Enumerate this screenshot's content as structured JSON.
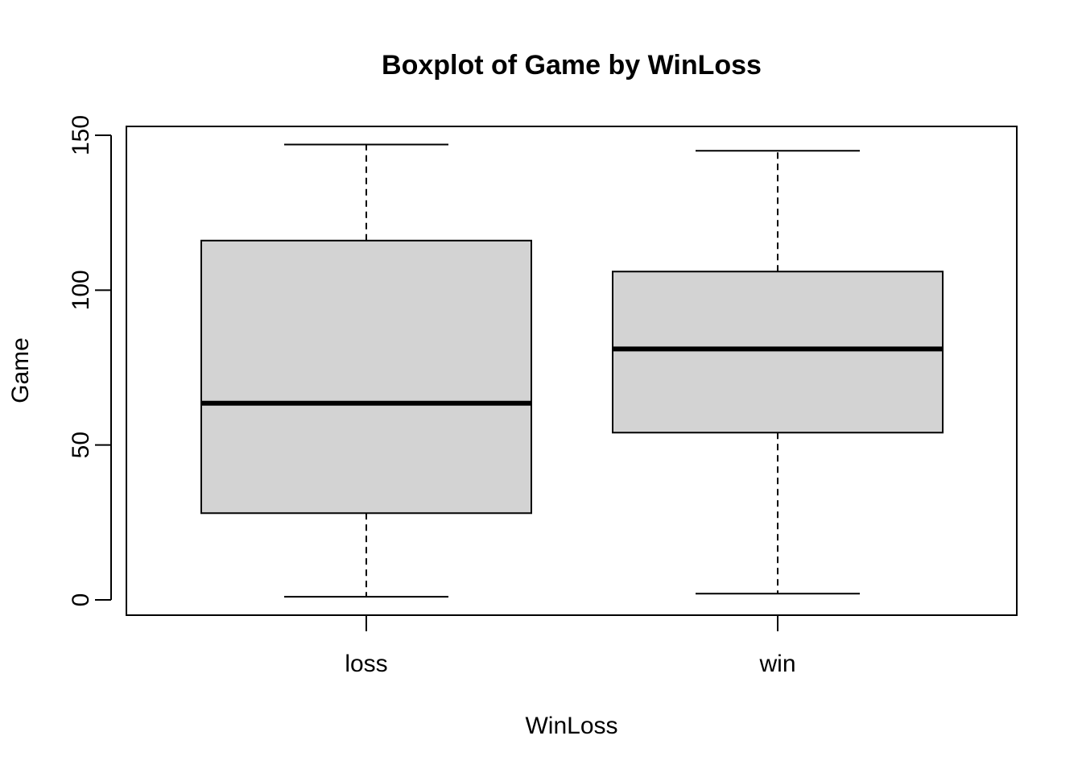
{
  "chart_data": {
    "type": "boxplot",
    "title": "Boxplot of Game by WinLoss",
    "xlabel": "WinLoss",
    "ylabel": "Game",
    "ylim": [
      -5,
      153
    ],
    "yticks": [
      0,
      50,
      100,
      150
    ],
    "categories": [
      "loss",
      "win"
    ],
    "boxes": [
      {
        "category": "loss",
        "min": 1,
        "q1": 28,
        "median": 63.5,
        "q3": 116,
        "max": 147
      },
      {
        "category": "win",
        "min": 2,
        "q1": 54,
        "median": 81,
        "q3": 106,
        "max": 145
      }
    ],
    "box_fill": "#d3d3d3",
    "line_color": "#000000",
    "grid": false
  }
}
